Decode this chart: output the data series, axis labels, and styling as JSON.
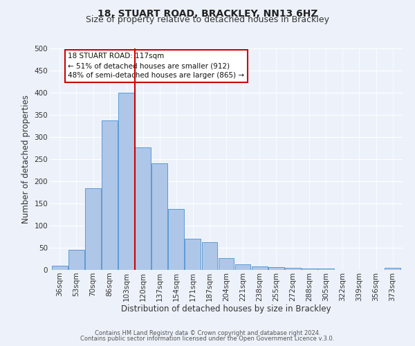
{
  "title": "18, STUART ROAD, BRACKLEY, NN13 6HZ",
  "subtitle": "Size of property relative to detached houses in Brackley",
  "xlabel": "Distribution of detached houses by size in Brackley",
  "ylabel": "Number of detached properties",
  "categories": [
    "36sqm",
    "53sqm",
    "70sqm",
    "86sqm",
    "103sqm",
    "120sqm",
    "137sqm",
    "154sqm",
    "171sqm",
    "187sqm",
    "204sqm",
    "221sqm",
    "238sqm",
    "255sqm",
    "272sqm",
    "288sqm",
    "305sqm",
    "322sqm",
    "339sqm",
    "356sqm",
    "373sqm"
  ],
  "values": [
    10,
    46,
    185,
    338,
    400,
    277,
    240,
    137,
    70,
    62,
    26,
    12,
    8,
    6,
    4,
    3,
    3,
    0,
    0,
    0,
    4
  ],
  "bar_color": "#aec6e8",
  "bar_edge_color": "#5b9bd5",
  "vline_color": "#cc0000",
  "annotation_title": "18 STUART ROAD: 117sqm",
  "annotation_line1": "← 51% of detached houses are smaller (912)",
  "annotation_line2": "48% of semi-detached houses are larger (865) →",
  "annotation_box_color": "#ffffff",
  "annotation_border_color": "#cc0000",
  "ylim": [
    0,
    500
  ],
  "yticks": [
    0,
    50,
    100,
    150,
    200,
    250,
    300,
    350,
    400,
    450,
    500
  ],
  "footer_line1": "Contains HM Land Registry data © Crown copyright and database right 2024.",
  "footer_line2": "Contains public sector information licensed under the Open Government Licence v.3.0.",
  "bg_color": "#edf2fa",
  "plot_bg_color": "#edf2fa",
  "title_fontsize": 10,
  "subtitle_fontsize": 9,
  "axis_label_fontsize": 8.5,
  "tick_fontsize": 7.5,
  "annotation_fontsize": 7.5,
  "footer_fontsize": 6.0
}
